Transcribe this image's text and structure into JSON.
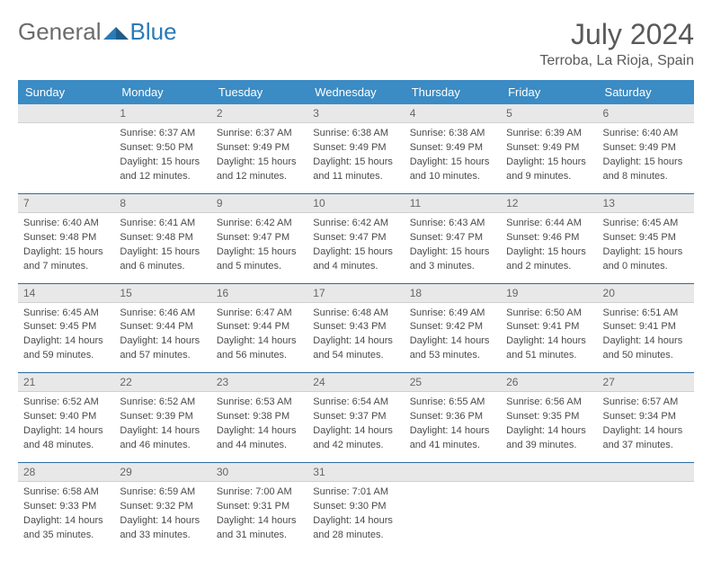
{
  "brand": {
    "text_general": "General",
    "text_blue": "Blue",
    "icon_color": "#2a7ab8"
  },
  "title": "July 2024",
  "location": "Terroba, La Rioja, Spain",
  "colors": {
    "header_bg": "#3b8bc4",
    "header_fg": "#ffffff",
    "daynum_bg": "#e8e8e8",
    "row_border": "#2a6ca0",
    "text": "#4a4a4a",
    "title_color": "#5a5a5a"
  },
  "weekdays": [
    "Sunday",
    "Monday",
    "Tuesday",
    "Wednesday",
    "Thursday",
    "Friday",
    "Saturday"
  ],
  "weeks": [
    [
      null,
      {
        "n": "1",
        "sr": "6:37 AM",
        "ss": "9:50 PM",
        "dl": "15 hours and 12 minutes."
      },
      {
        "n": "2",
        "sr": "6:37 AM",
        "ss": "9:49 PM",
        "dl": "15 hours and 12 minutes."
      },
      {
        "n": "3",
        "sr": "6:38 AM",
        "ss": "9:49 PM",
        "dl": "15 hours and 11 minutes."
      },
      {
        "n": "4",
        "sr": "6:38 AM",
        "ss": "9:49 PM",
        "dl": "15 hours and 10 minutes."
      },
      {
        "n": "5",
        "sr": "6:39 AM",
        "ss": "9:49 PM",
        "dl": "15 hours and 9 minutes."
      },
      {
        "n": "6",
        "sr": "6:40 AM",
        "ss": "9:49 PM",
        "dl": "15 hours and 8 minutes."
      }
    ],
    [
      {
        "n": "7",
        "sr": "6:40 AM",
        "ss": "9:48 PM",
        "dl": "15 hours and 7 minutes."
      },
      {
        "n": "8",
        "sr": "6:41 AM",
        "ss": "9:48 PM",
        "dl": "15 hours and 6 minutes."
      },
      {
        "n": "9",
        "sr": "6:42 AM",
        "ss": "9:47 PM",
        "dl": "15 hours and 5 minutes."
      },
      {
        "n": "10",
        "sr": "6:42 AM",
        "ss": "9:47 PM",
        "dl": "15 hours and 4 minutes."
      },
      {
        "n": "11",
        "sr": "6:43 AM",
        "ss": "9:47 PM",
        "dl": "15 hours and 3 minutes."
      },
      {
        "n": "12",
        "sr": "6:44 AM",
        "ss": "9:46 PM",
        "dl": "15 hours and 2 minutes."
      },
      {
        "n": "13",
        "sr": "6:45 AM",
        "ss": "9:45 PM",
        "dl": "15 hours and 0 minutes."
      }
    ],
    [
      {
        "n": "14",
        "sr": "6:45 AM",
        "ss": "9:45 PM",
        "dl": "14 hours and 59 minutes."
      },
      {
        "n": "15",
        "sr": "6:46 AM",
        "ss": "9:44 PM",
        "dl": "14 hours and 57 minutes."
      },
      {
        "n": "16",
        "sr": "6:47 AM",
        "ss": "9:44 PM",
        "dl": "14 hours and 56 minutes."
      },
      {
        "n": "17",
        "sr": "6:48 AM",
        "ss": "9:43 PM",
        "dl": "14 hours and 54 minutes."
      },
      {
        "n": "18",
        "sr": "6:49 AM",
        "ss": "9:42 PM",
        "dl": "14 hours and 53 minutes."
      },
      {
        "n": "19",
        "sr": "6:50 AM",
        "ss": "9:41 PM",
        "dl": "14 hours and 51 minutes."
      },
      {
        "n": "20",
        "sr": "6:51 AM",
        "ss": "9:41 PM",
        "dl": "14 hours and 50 minutes."
      }
    ],
    [
      {
        "n": "21",
        "sr": "6:52 AM",
        "ss": "9:40 PM",
        "dl": "14 hours and 48 minutes."
      },
      {
        "n": "22",
        "sr": "6:52 AM",
        "ss": "9:39 PM",
        "dl": "14 hours and 46 minutes."
      },
      {
        "n": "23",
        "sr": "6:53 AM",
        "ss": "9:38 PM",
        "dl": "14 hours and 44 minutes."
      },
      {
        "n": "24",
        "sr": "6:54 AM",
        "ss": "9:37 PM",
        "dl": "14 hours and 42 minutes."
      },
      {
        "n": "25",
        "sr": "6:55 AM",
        "ss": "9:36 PM",
        "dl": "14 hours and 41 minutes."
      },
      {
        "n": "26",
        "sr": "6:56 AM",
        "ss": "9:35 PM",
        "dl": "14 hours and 39 minutes."
      },
      {
        "n": "27",
        "sr": "6:57 AM",
        "ss": "9:34 PM",
        "dl": "14 hours and 37 minutes."
      }
    ],
    [
      {
        "n": "28",
        "sr": "6:58 AM",
        "ss": "9:33 PM",
        "dl": "14 hours and 35 minutes."
      },
      {
        "n": "29",
        "sr": "6:59 AM",
        "ss": "9:32 PM",
        "dl": "14 hours and 33 minutes."
      },
      {
        "n": "30",
        "sr": "7:00 AM",
        "ss": "9:31 PM",
        "dl": "14 hours and 31 minutes."
      },
      {
        "n": "31",
        "sr": "7:01 AM",
        "ss": "9:30 PM",
        "dl": "14 hours and 28 minutes."
      },
      null,
      null,
      null
    ]
  ],
  "labels": {
    "sunrise": "Sunrise:",
    "sunset": "Sunset:",
    "daylight": "Daylight:"
  }
}
